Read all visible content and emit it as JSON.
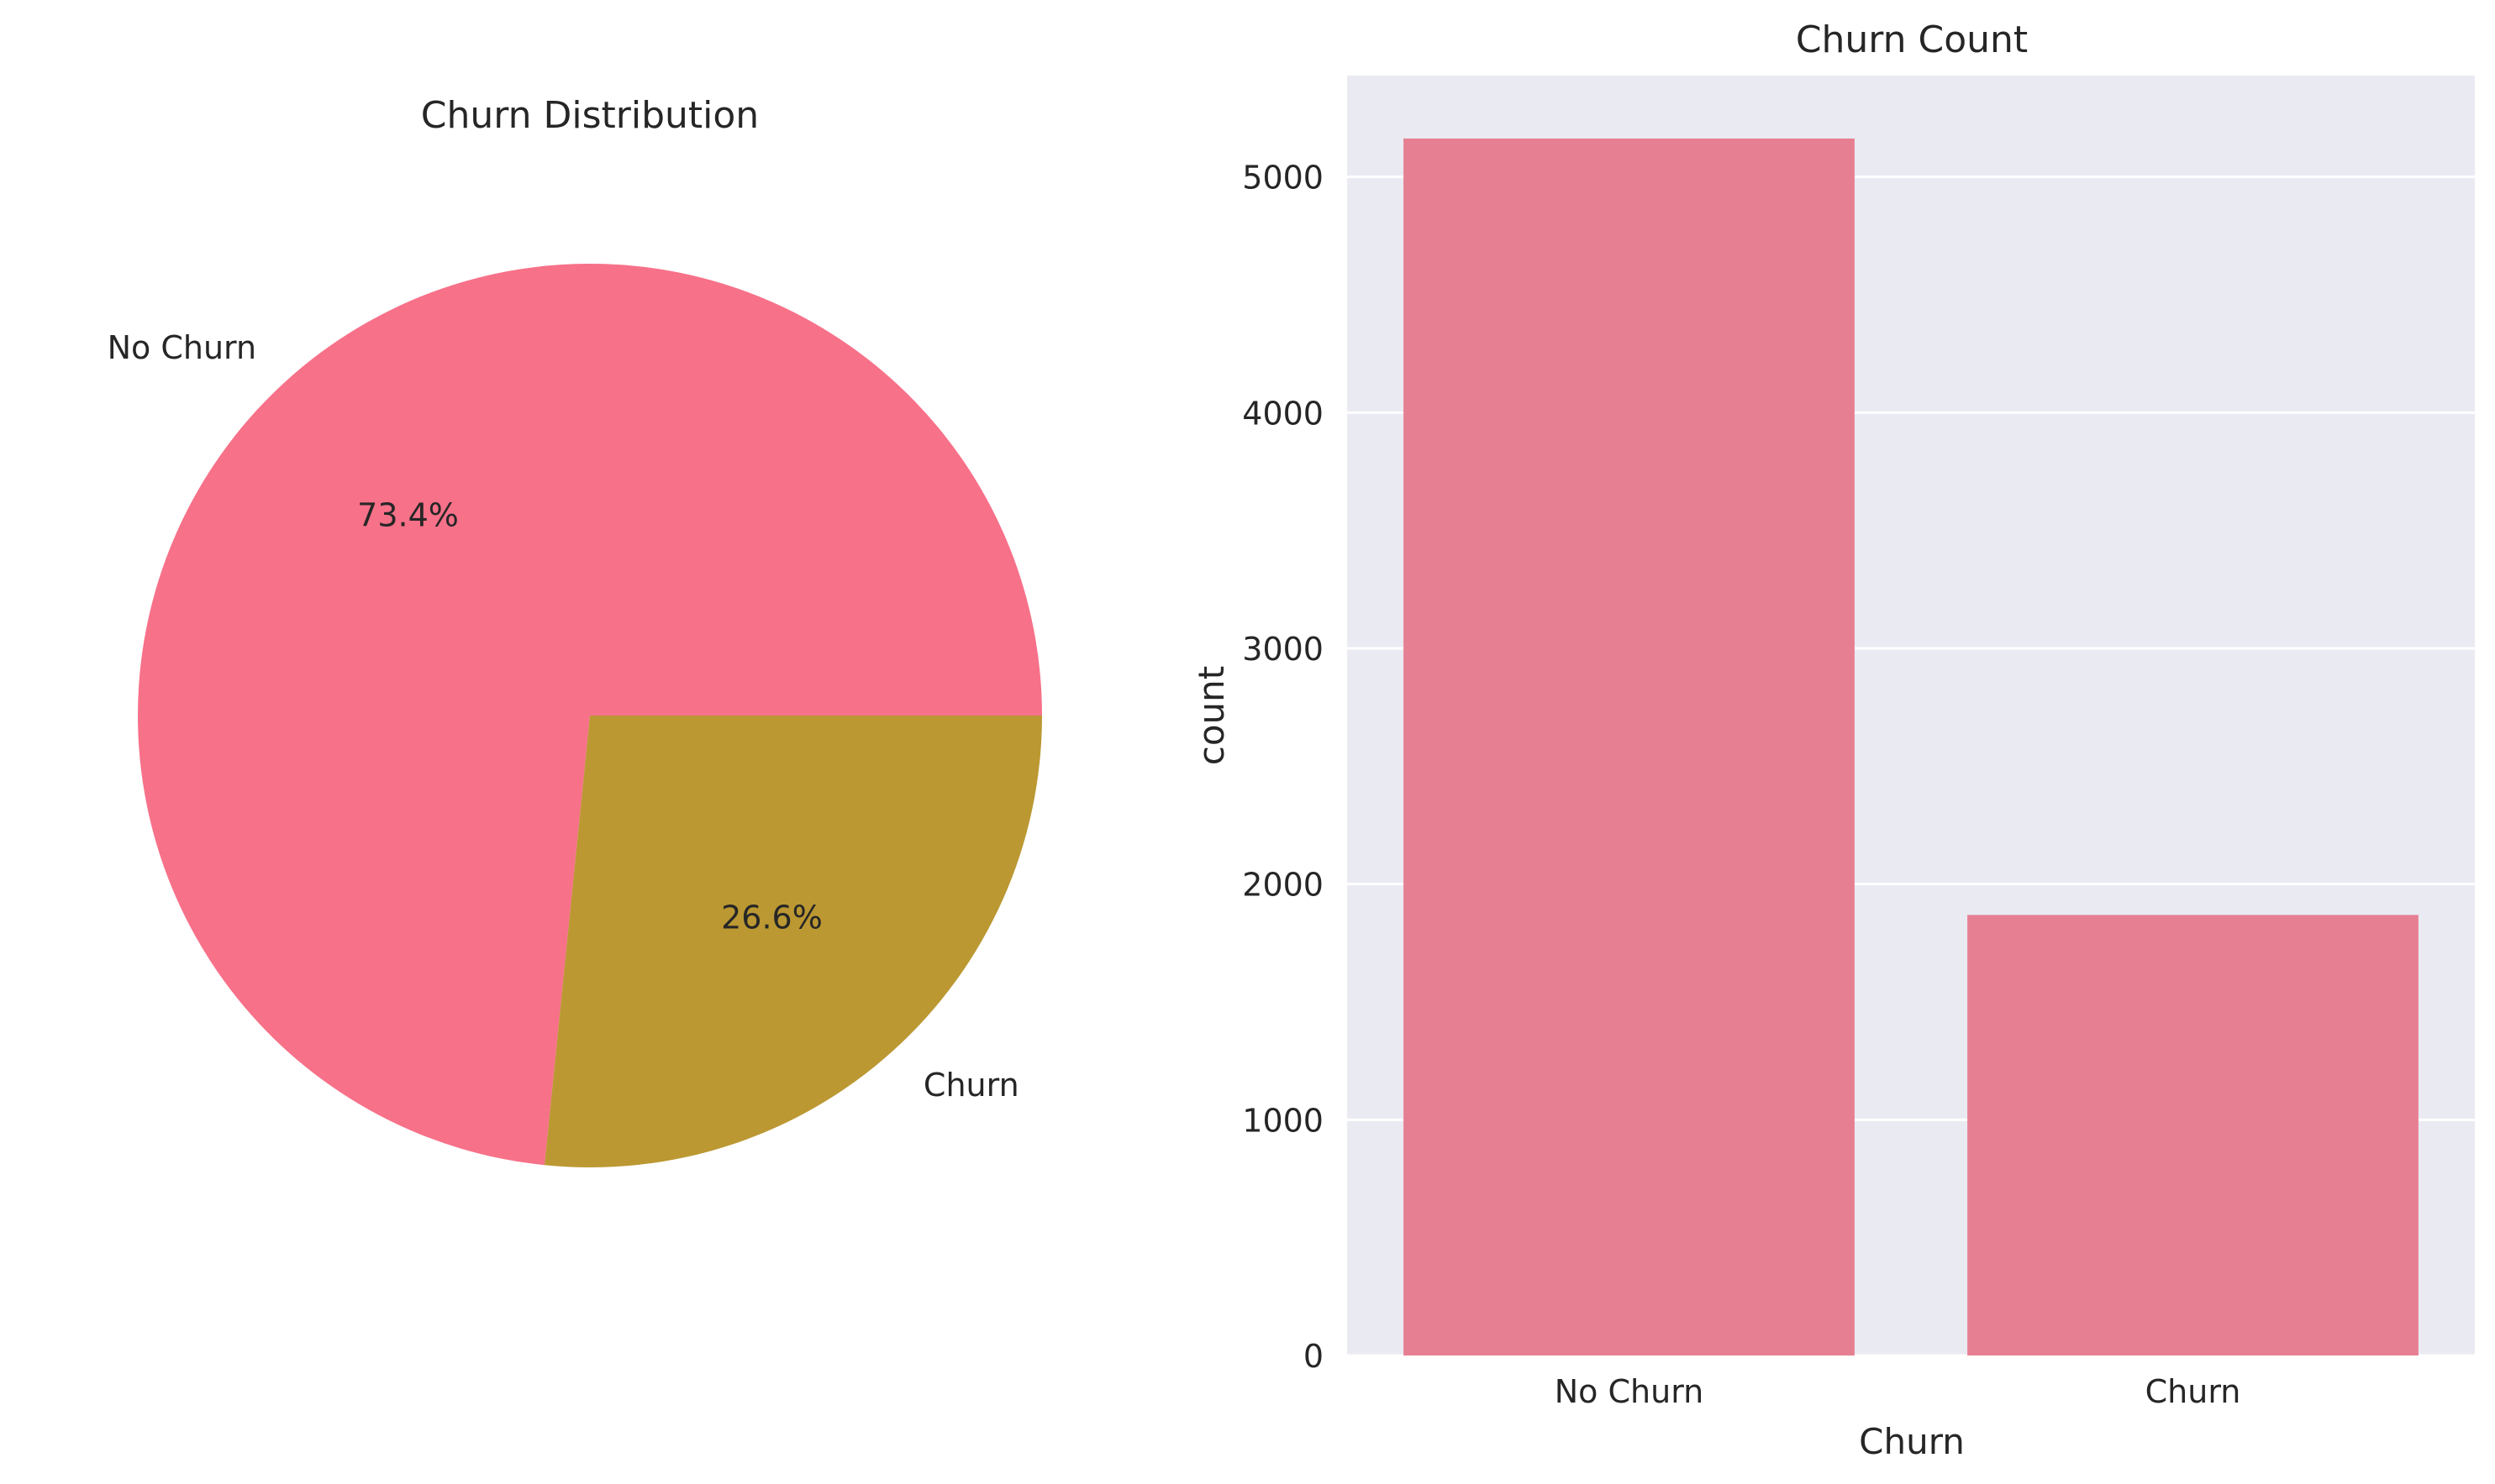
{
  "chart_data": [
    {
      "type": "pie",
      "title": "Churn Distribution",
      "labels": [
        "No Churn",
        "Churn"
      ],
      "values": [
        73.4,
        26.6
      ],
      "value_labels": [
        "73.4%",
        "26.6%"
      ],
      "colors": [
        "#f77189",
        "#bb9832"
      ],
      "legend": "none"
    },
    {
      "type": "bar",
      "title": "Churn Count",
      "categories": [
        "No Churn",
        "Churn"
      ],
      "values": [
        5163,
        1869
      ],
      "xlabel": "Churn",
      "ylabel": "count",
      "ylim": [
        0,
        5430
      ],
      "yticks": [
        0,
        1000,
        2000,
        3000,
        4000,
        5000
      ],
      "ytick_labels": [
        "0",
        "1000",
        "2000",
        "3000",
        "4000",
        "5000"
      ],
      "grid": true,
      "colors": {
        "bar": "#e77f92",
        "plot_background": "#eaeaf2",
        "grid": "#ffffff"
      },
      "legend": "none"
    }
  ]
}
